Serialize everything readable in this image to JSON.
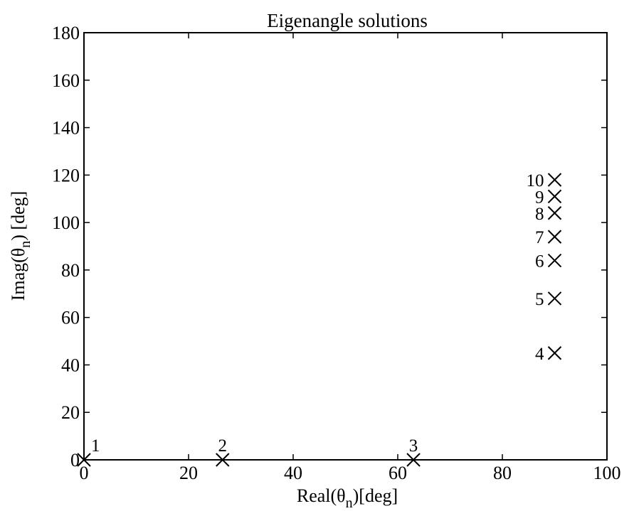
{
  "chart_data": {
    "type": "scatter",
    "title": "Eigenangle solutions",
    "xlabel": {
      "prefix": "Real(θ",
      "sub": "n",
      "suffix": ")[deg]"
    },
    "ylabel": {
      "prefix": "Imag(θ",
      "sub": "n",
      "suffix": ") [deg]"
    },
    "xlim": [
      0,
      100
    ],
    "ylim": [
      0,
      180
    ],
    "xticks": [
      0,
      20,
      40,
      60,
      80,
      100
    ],
    "yticks": [
      0,
      20,
      40,
      60,
      80,
      100,
      120,
      140,
      160,
      180
    ],
    "grid": false,
    "marker": "x",
    "points": [
      {
        "label": "1",
        "x": 0,
        "y": 0
      },
      {
        "label": "2",
        "x": 26.5,
        "y": 0
      },
      {
        "label": "3",
        "x": 63,
        "y": 0
      },
      {
        "label": "4",
        "x": 90,
        "y": 45
      },
      {
        "label": "5",
        "x": 90,
        "y": 68
      },
      {
        "label": "6",
        "x": 90,
        "y": 84
      },
      {
        "label": "7",
        "x": 90,
        "y": 94
      },
      {
        "label": "8",
        "x": 90,
        "y": 104
      },
      {
        "label": "9",
        "x": 90,
        "y": 111
      },
      {
        "label": "10",
        "x": 90,
        "y": 118
      }
    ]
  }
}
